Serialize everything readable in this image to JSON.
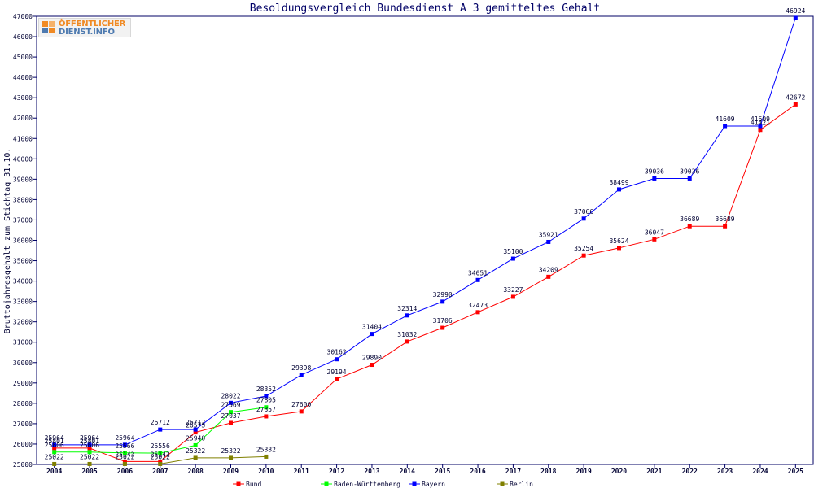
{
  "chart_data": {
    "type": "line",
    "title": "Besoldungsvergleich Bundesdienst A 3 gemitteltes Gehalt",
    "xlabel": "",
    "ylabel": "Bruttojahresgehalt zum Stichtag 31.10.",
    "ylim": [
      25000,
      47000
    ],
    "yticks": [
      25000,
      26000,
      27000,
      28000,
      29000,
      30000,
      31000,
      32000,
      33000,
      34000,
      35000,
      36000,
      37000,
      38000,
      39000,
      40000,
      41000,
      42000,
      43000,
      44000,
      45000,
      46000,
      47000
    ],
    "categories": [
      "2004",
      "2005",
      "2006",
      "2007",
      "2008",
      "2009",
      "2010",
      "2011",
      "2012",
      "2013",
      "2014",
      "2015",
      "2016",
      "2017",
      "2018",
      "2019",
      "2020",
      "2021",
      "2022",
      "2023",
      "2024",
      "2025"
    ],
    "grid": false,
    "legend_position": "bottom",
    "series": [
      {
        "name": "Bund",
        "color": "#ff0000",
        "values": [
          25801,
          25801,
          25142,
          25142,
          26573,
          27037,
          27357,
          27600,
          29194,
          29890,
          31032,
          31706,
          32473,
          33227,
          34209,
          35254,
          35624,
          36047,
          36689,
          36689,
          41421,
          42672
        ]
      },
      {
        "name": "Baden-Württemberg",
        "color": "#00ff00",
        "values": [
          25606,
          25606,
          25566,
          25556,
          25940,
          27569,
          27805,
          null,
          null,
          null,
          null,
          null,
          null,
          null,
          null,
          null,
          null,
          null,
          null,
          null,
          null,
          null
        ]
      },
      {
        "name": "Bayern",
        "color": "#0000ff",
        "values": [
          25964,
          25964,
          25964,
          26712,
          26712,
          28022,
          28352,
          29398,
          30162,
          31404,
          32314,
          32990,
          34051,
          35100,
          35921,
          37066,
          38499,
          39036,
          39036,
          41609,
          41609,
          46924
        ]
      },
      {
        "name": "Berlin",
        "color": "#808000",
        "values": [
          25022,
          25022,
          25022,
          25022,
          25322,
          25322,
          25382,
          null,
          null,
          null,
          null,
          null,
          null,
          null,
          null,
          null,
          null,
          null,
          null,
          null,
          null,
          null
        ]
      }
    ]
  },
  "logo": {
    "line1": "ÖFFENTLICHER",
    "line2": "DIENST.INFO"
  }
}
